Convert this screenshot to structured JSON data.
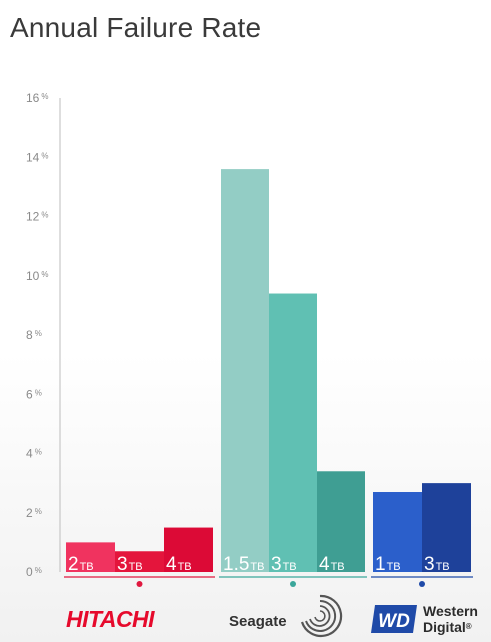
{
  "chart_data": {
    "type": "bar",
    "title": "Annual Failure Rate",
    "ylim": [
      0,
      16
    ],
    "yticks": [
      0,
      2,
      4,
      6,
      8,
      10,
      12,
      14,
      16
    ],
    "ytick_suffix": "%",
    "grid": false,
    "groups": [
      {
        "name": "HITACHI",
        "color": "#e0183f",
        "bars": [
          {
            "capacity": "2",
            "unit": "TB",
            "value": 1.0,
            "color": "#f0335f"
          },
          {
            "capacity": "3",
            "unit": "TB",
            "value": 0.7,
            "color": "#e4153c"
          },
          {
            "capacity": "4",
            "unit": "TB",
            "value": 1.5,
            "color": "#dc0a36"
          }
        ]
      },
      {
        "name": "Seagate",
        "color": "#3aa69a",
        "bars": [
          {
            "capacity": "1.5",
            "unit": "TB",
            "value": 13.6,
            "color": "#93cdc5"
          },
          {
            "capacity": "3",
            "unit": "TB",
            "value": 9.4,
            "color": "#60c0b3"
          },
          {
            "capacity": "4",
            "unit": "TB",
            "value": 3.4,
            "color": "#3f9e93"
          }
        ]
      },
      {
        "name": "Western Digital",
        "color": "#1f4aa8",
        "bars": [
          {
            "capacity": "1",
            "unit": "TB",
            "value": 2.7,
            "color": "#2b5fcb"
          },
          {
            "capacity": "3",
            "unit": "TB",
            "value": 3.0,
            "color": "#1e419a"
          }
        ]
      }
    ]
  },
  "logos": {
    "hitachi": "HITACHI",
    "seagate": "Seagate",
    "wd_mark": "WD",
    "wd_line1": "Western",
    "wd_line2": "Digital",
    "wd_reg": "®"
  }
}
